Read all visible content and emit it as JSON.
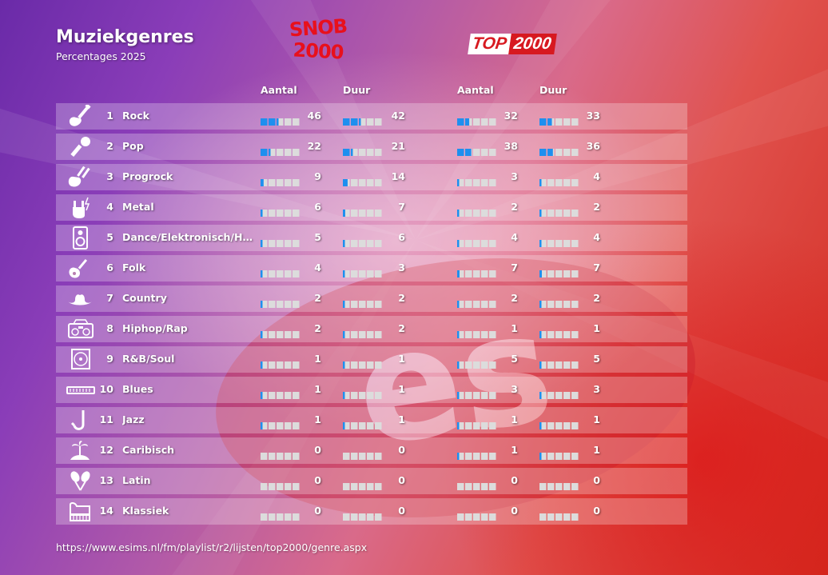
{
  "title": "Muziekgenres",
  "subtitle": "Percentages 2025",
  "logos": {
    "left_line1": "SNOB",
    "left_line2": "2000",
    "right_a": "TOP",
    "right_b": "2000"
  },
  "columns": {
    "aantal": "Aantal",
    "duur": "Duur"
  },
  "footer": "https://www.esims.nl/fm/playlist/r2/lijsten/top2000/genre.aspx",
  "colors": {
    "fill": "#1e8fef",
    "track": "#dcdcdc"
  },
  "chart_data": {
    "type": "table",
    "title": "Muziekgenres",
    "subtitle": "Percentages 2025",
    "groups": [
      "Snob 2000",
      "Top 2000"
    ],
    "column_labels": [
      "Aantal",
      "Duur",
      "Aantal",
      "Duur"
    ],
    "max": 100,
    "rows": [
      {
        "rank": "1",
        "genre": "Rock",
        "icon": "electric-guitar-icon",
        "snob_aantal": 46,
        "snob_duur": 42,
        "top_aantal": 32,
        "top_duur": 33
      },
      {
        "rank": "2",
        "genre": "Pop",
        "icon": "microphone-icon",
        "snob_aantal": 22,
        "snob_duur": 21,
        "top_aantal": 38,
        "top_duur": 36
      },
      {
        "rank": "3",
        "genre": "Progrock",
        "icon": "double-neck-guitar-icon",
        "snob_aantal": 9,
        "snob_duur": 14,
        "top_aantal": 3,
        "top_duur": 4
      },
      {
        "rank": "4",
        "genre": "Metal",
        "icon": "horns-hand-icon",
        "snob_aantal": 6,
        "snob_duur": 7,
        "top_aantal": 2,
        "top_duur": 2
      },
      {
        "rank": "5",
        "genre": "Dance/Elektronisch/H…",
        "icon": "speaker-icon",
        "snob_aantal": 5,
        "snob_duur": 6,
        "top_aantal": 4,
        "top_duur": 4
      },
      {
        "rank": "6",
        "genre": "Folk",
        "icon": "acoustic-guitar-icon",
        "snob_aantal": 4,
        "snob_duur": 3,
        "top_aantal": 7,
        "top_duur": 7
      },
      {
        "rank": "7",
        "genre": "Country",
        "icon": "cowboy-hat-icon",
        "snob_aantal": 2,
        "snob_duur": 2,
        "top_aantal": 2,
        "top_duur": 2
      },
      {
        "rank": "8",
        "genre": "Hiphop/Rap",
        "icon": "boombox-icon",
        "snob_aantal": 2,
        "snob_duur": 2,
        "top_aantal": 1,
        "top_duur": 1
      },
      {
        "rank": "9",
        "genre": "R&B/Soul",
        "icon": "vinyl-record-icon",
        "snob_aantal": 1,
        "snob_duur": 1,
        "top_aantal": 5,
        "top_duur": 5
      },
      {
        "rank": "10",
        "genre": "Blues",
        "icon": "harmonica-icon",
        "snob_aantal": 1,
        "snob_duur": 1,
        "top_aantal": 3,
        "top_duur": 3
      },
      {
        "rank": "11",
        "genre": "Jazz",
        "icon": "saxophone-icon",
        "snob_aantal": 1,
        "snob_duur": 1,
        "top_aantal": 1,
        "top_duur": 1
      },
      {
        "rank": "12",
        "genre": "Caribisch",
        "icon": "palm-island-icon",
        "snob_aantal": 0,
        "snob_duur": 0,
        "top_aantal": 1,
        "top_duur": 1
      },
      {
        "rank": "13",
        "genre": "Latin",
        "icon": "maracas-icon",
        "snob_aantal": 0,
        "snob_duur": 0,
        "top_aantal": 0,
        "top_duur": 0
      },
      {
        "rank": "14",
        "genre": "Klassiek",
        "icon": "piano-icon",
        "snob_aantal": 0,
        "snob_duur": 0,
        "top_aantal": 0,
        "top_duur": 0
      }
    ]
  }
}
